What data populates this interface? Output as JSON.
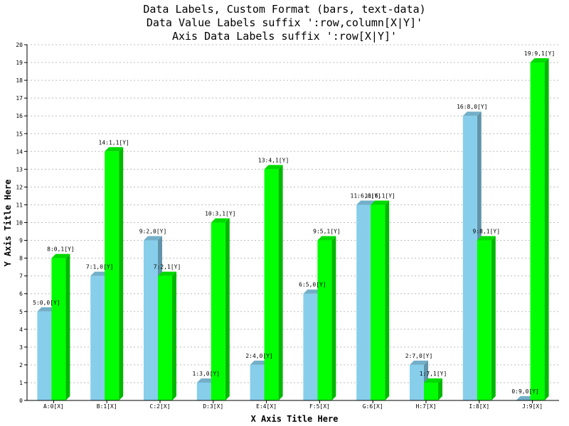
{
  "chart_title": {
    "line1": "Data Labels, Custom Format (bars, text-data)",
    "line2": "Data Value Labels suffix ':row,column[X|Y]'",
    "line3": "Axis Data Labels suffix ':row[X|Y]'"
  },
  "colors": {
    "series1": "#87ceeb",
    "series2": "#00ff00",
    "grid": "#bbbbbb",
    "axis": "#000000"
  },
  "chart_data": {
    "type": "bar",
    "title": "Data Labels, Custom Format (bars, text-data)",
    "subtitle": [
      "Data Value Labels suffix ':row,column[X|Y]'",
      "Axis Data Labels suffix ':row[X|Y]'"
    ],
    "xlabel": "X Axis Title Here",
    "ylabel": "Y Axis Title Here",
    "ylim": [
      0,
      20
    ],
    "yticks": [
      0,
      1,
      2,
      3,
      4,
      5,
      6,
      7,
      8,
      9,
      10,
      11,
      12,
      13,
      14,
      15,
      16,
      17,
      18,
      19,
      20
    ],
    "grid": "horizontal dotted",
    "categories": [
      "A:0[X]",
      "B:1[X]",
      "C:2[X]",
      "D:3[X]",
      "E:4[X]",
      "F:5[X]",
      "G:6[X]",
      "H:7[X]",
      "I:8[X]",
      "J:9[X]"
    ],
    "series": [
      {
        "values": [
          5,
          7,
          9,
          1,
          2,
          6,
          11,
          2,
          16,
          0
        ],
        "labels": [
          "5:0,0[Y]",
          "7:1,0[Y]",
          "9:2,0[Y]",
          "1:3,0[Y]",
          "2:4,0[Y]",
          "6:5,0[Y]",
          "11:6,0[Y]",
          "2:7,0[Y]",
          "16:8,0[Y]",
          "0:9,0[Y]"
        ]
      },
      {
        "values": [
          8,
          14,
          7,
          10,
          13,
          9,
          11,
          1,
          9,
          19
        ],
        "labels": [
          "8:0,1[Y]",
          "14:1,1[Y]",
          "7:2,1[Y]",
          "10:3,1[Y]",
          "13:4,1[Y]",
          "9:5,1[Y]",
          "11:6,1[Y]",
          "1:7,1[Y]",
          "9:8,1[Y]",
          "19:9,1[Y]"
        ]
      }
    ]
  }
}
